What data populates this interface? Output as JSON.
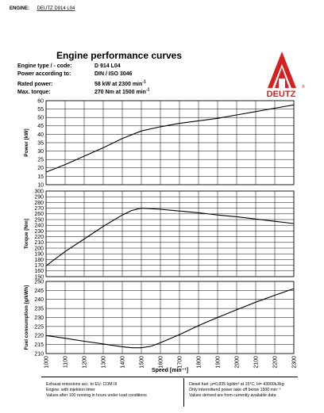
{
  "header": {
    "label": "ENGINE:",
    "value": "DEUTZ D914 L04"
  },
  "title": "Engine performance curves",
  "specs": [
    {
      "label": "Engine type / - code:",
      "value": "D 914 L04"
    },
    {
      "label": "Power according to:",
      "value": "DIN / ISO 3046"
    },
    {
      "label": "Rated power:",
      "value": "58 kW at 2300 min",
      "sup": "-1"
    },
    {
      "label": "Max. torque:",
      "value": "270 Nm at 1500 min",
      "sup": "-1"
    }
  ],
  "logo": {
    "text": "DEUTZ",
    "mark": "®",
    "color": "#d42020"
  },
  "chart_data": [
    {
      "type": "line",
      "ylabel": "Power   [kW]",
      "ylim": [
        10,
        60
      ],
      "yticks": [
        10,
        15,
        20,
        25,
        30,
        35,
        40,
        45,
        50,
        55,
        60
      ],
      "x": [
        1000,
        1100,
        1200,
        1300,
        1400,
        1500,
        1600,
        1700,
        1800,
        1900,
        2000,
        2100,
        2200,
        2300
      ],
      "series": [
        {
          "values": [
            17.5,
            22,
            27,
            32,
            37.5,
            42,
            44.5,
            46.5,
            48,
            49.5,
            51.5,
            53.5,
            55.5,
            57.5
          ]
        }
      ]
    },
    {
      "type": "line",
      "ylabel": "Torque   [Nm]",
      "ylim": [
        150,
        300
      ],
      "yticks": [
        150,
        160,
        170,
        180,
        190,
        200,
        210,
        220,
        230,
        240,
        250,
        260,
        270,
        280,
        290,
        300
      ],
      "x": [
        1000,
        1100,
        1200,
        1300,
        1400,
        1450,
        1500,
        1600,
        1700,
        1800,
        1900,
        2000,
        2100,
        2200,
        2300
      ],
      "series": [
        {
          "values": [
            169,
            194,
            216,
            238,
            258,
            266,
            270,
            268,
            265,
            262,
            258,
            255,
            251,
            247,
            243
          ]
        }
      ]
    },
    {
      "type": "line",
      "ylabel": "Fuel consumption   [g/kWh]",
      "ylim": [
        210,
        250
      ],
      "yticks": [
        210,
        215,
        220,
        225,
        230,
        235,
        240,
        245,
        250
      ],
      "x": [
        1000,
        1100,
        1200,
        1300,
        1400,
        1450,
        1500,
        1550,
        1600,
        1700,
        1800,
        1900,
        2000,
        2100,
        2200,
        2300
      ],
      "series": [
        {
          "values": [
            220,
            218.5,
            216.8,
            215.3,
            213.8,
            213.2,
            213.2,
            214,
            216,
            220.5,
            225.5,
            230,
            234.3,
            238.5,
            242.3,
            246
          ]
        }
      ],
      "xlabel": "Speed [min⁻¹]",
      "xticks": [
        1000,
        1100,
        1200,
        1300,
        1400,
        1500,
        1600,
        1700,
        1800,
        1900,
        2000,
        2100,
        2200,
        2300
      ]
    }
  ],
  "footer": {
    "left": [
      "Exhaust emissions acc. to EU: COM III",
      "Engine: with injektion timer",
      "Values after 100 running in hours under load conditions"
    ],
    "right": [
      "Diesel fuel: ρ=0,835 kg/dm³ at 15°C, H= 43000kJ/kg",
      "Only intermittend power take off below 1500 min⁻¹",
      "Values derived are from currently available data"
    ]
  }
}
